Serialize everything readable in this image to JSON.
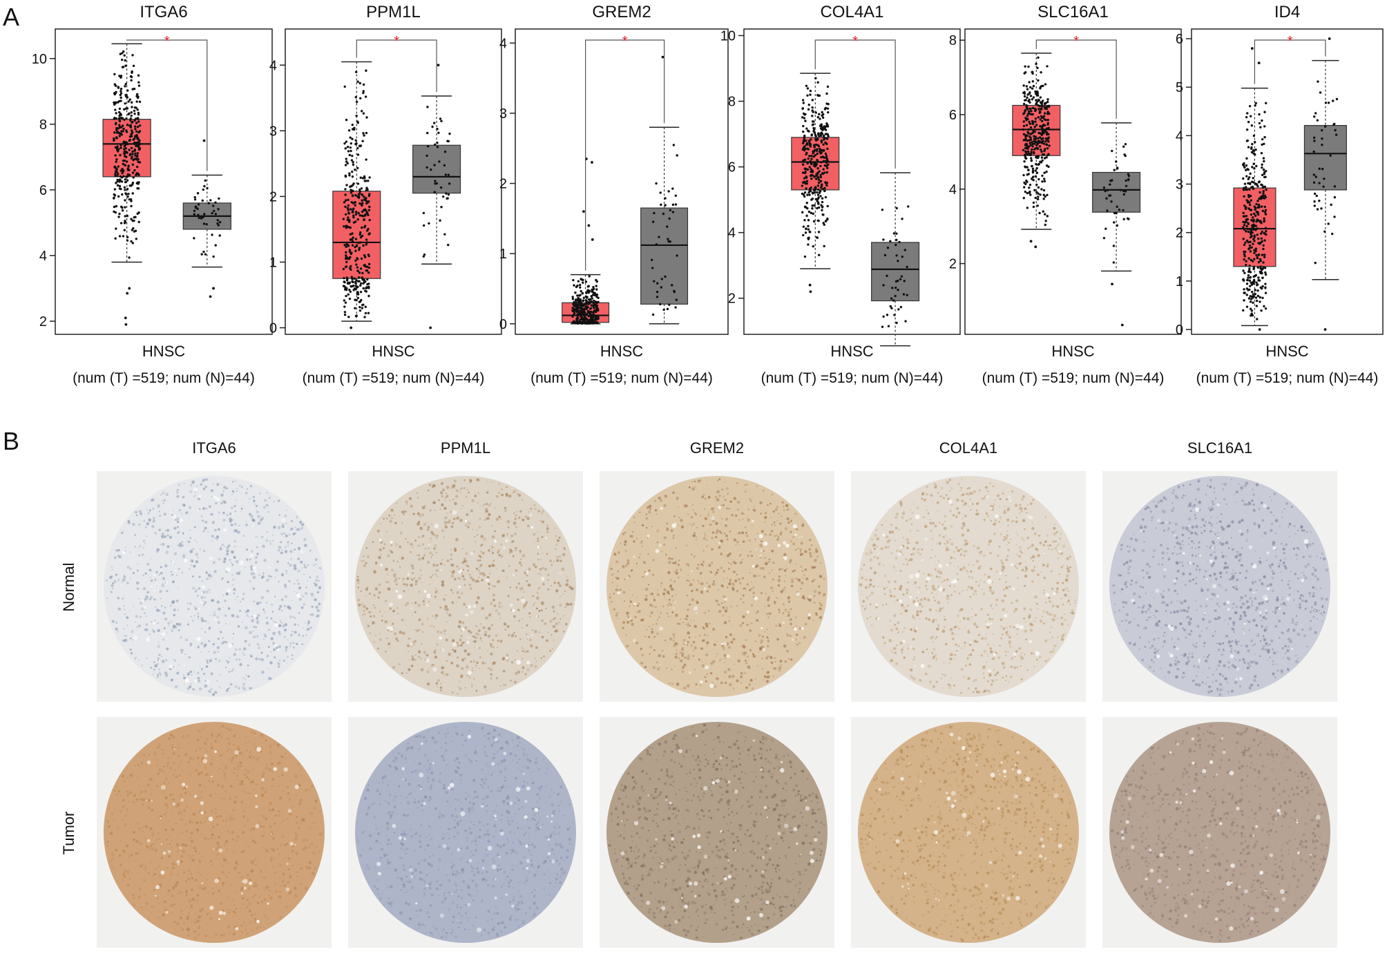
{
  "panel_a_label": "A",
  "panel_b_label": "B",
  "chart_data": [
    {
      "type": "box",
      "title": "ITGA6",
      "category": "HNSC",
      "n_label": "(num (T) =519; num (N)=44)",
      "sig": "*",
      "yticks": [
        2,
        4,
        6,
        8,
        10
      ],
      "ylim": [
        1.6,
        10.9
      ],
      "series": [
        {
          "name": "T",
          "color": "#f26064",
          "whisker_low": 3.8,
          "q1": 6.4,
          "median": 7.4,
          "q3": 8.15,
          "whisker_high": 10.45,
          "outliers": [
            3.0,
            2.85,
            2.1,
            1.9
          ]
        },
        {
          "name": "N",
          "color": "#7b7b7b",
          "whisker_low": 3.65,
          "q1": 4.8,
          "median": 5.2,
          "q3": 5.6,
          "whisker_high": 6.45,
          "outliers": [
            7.5,
            3.0,
            2.75
          ]
        }
      ]
    },
    {
      "type": "box",
      "title": "PPM1L",
      "category": "HNSC",
      "n_label": "(num (T) =519; num (N)=44)",
      "sig": "*",
      "yticks": [
        0,
        1,
        2,
        3,
        4
      ],
      "ylim": [
        -0.1,
        4.55
      ],
      "series": [
        {
          "name": "T",
          "color": "#f26064",
          "whisker_low": 0.1,
          "q1": 0.75,
          "median": 1.3,
          "q3": 2.08,
          "whisker_high": 4.05,
          "outliers": [
            0.0
          ]
        },
        {
          "name": "N",
          "color": "#7b7b7b",
          "whisker_low": 0.97,
          "q1": 2.05,
          "median": 2.3,
          "q3": 2.78,
          "whisker_high": 3.53,
          "outliers": [
            4.0,
            0.0
          ]
        }
      ]
    },
    {
      "type": "box",
      "title": "GREM2",
      "category": "HNSC",
      "n_label": "(num (T) =519; num (N)=44)",
      "sig": "*",
      "yticks": [
        0,
        1,
        2,
        3,
        4
      ],
      "ylim": [
        -0.15,
        4.2
      ],
      "series": [
        {
          "name": "T",
          "color": "#f26064",
          "whisker_low": 0.0,
          "q1": 0.02,
          "median": 0.12,
          "q3": 0.3,
          "whisker_high": 0.7,
          "outliers": [
            2.35,
            2.3,
            1.6,
            1.4,
            1.2
          ]
        },
        {
          "name": "N",
          "color": "#7b7b7b",
          "whisker_low": 0.0,
          "q1": 0.28,
          "median": 1.12,
          "q3": 1.65,
          "whisker_high": 2.8,
          "outliers": [
            3.8
          ]
        }
      ]
    },
    {
      "type": "box",
      "title": "COL4A1",
      "category": "HNSC",
      "n_label": "(num (T) =519; num (N)=44)",
      "sig": "*",
      "yticks": [
        2,
        4,
        6,
        8,
        10
      ],
      "ylim": [
        0.9,
        10.2
      ],
      "series": [
        {
          "name": "T",
          "color": "#f26064",
          "whisker_low": 2.9,
          "q1": 5.3,
          "median": 6.15,
          "q3": 6.9,
          "whisker_high": 8.85,
          "outliers": [
            2.4,
            2.2
          ]
        },
        {
          "name": "N",
          "color": "#7b7b7b",
          "whisker_low": 0.55,
          "q1": 1.92,
          "median": 2.88,
          "q3": 3.7,
          "whisker_high": 5.82,
          "outliers": []
        }
      ]
    },
    {
      "type": "box",
      "title": "SLC16A1",
      "category": "HNSC",
      "n_label": "(num (T) =519; num (N)=44)",
      "sig": "*",
      "yticks": [
        2,
        4,
        6,
        8
      ],
      "ylim": [
        0.1,
        8.3
      ],
      "series": [
        {
          "name": "T",
          "color": "#f26064",
          "whisker_low": 2.92,
          "q1": 4.9,
          "median": 5.6,
          "q3": 6.25,
          "whisker_high": 7.65,
          "outliers": [
            2.6,
            2.45
          ]
        },
        {
          "name": "N",
          "color": "#7b7b7b",
          "whisker_low": 1.8,
          "q1": 3.38,
          "median": 3.98,
          "q3": 4.45,
          "whisker_high": 5.78,
          "outliers": [
            1.45,
            0.35
          ]
        }
      ]
    },
    {
      "type": "box",
      "title": "ID4",
      "category": "HNSC",
      "n_label": "(num (T) =519; num (N)=44)",
      "sig": "*",
      "yticks": [
        0,
        1,
        2,
        3,
        4,
        5,
        6
      ],
      "ylim": [
        -0.1,
        6.2
      ],
      "series": [
        {
          "name": "T",
          "color": "#f26064",
          "whisker_low": 0.08,
          "q1": 1.3,
          "median": 2.08,
          "q3": 2.92,
          "whisker_high": 4.98,
          "outliers": [
            5.8,
            5.5,
            0.0
          ]
        },
        {
          "name": "N",
          "color": "#7b7b7b",
          "whisker_low": 1.03,
          "q1": 2.88,
          "median": 3.63,
          "q3": 4.21,
          "whisker_high": 5.55,
          "outliers": [
            6.0,
            0.0
          ]
        }
      ]
    }
  ],
  "ihc": {
    "columns": [
      "ITGA6",
      "PPM1L",
      "GREM2",
      "COL4A1",
      "SLC16A1"
    ],
    "rows": [
      "Normal",
      "Tumor"
    ],
    "cores": {
      "Normal": [
        {
          "tissue": "#e6e8eb",
          "stain": "#8a9ab3"
        },
        {
          "tissue": "#ddd4c6",
          "stain": "#a7825a"
        },
        {
          "tissue": "#dcc8a9",
          "stain": "#a1744a"
        },
        {
          "tissue": "#e3dbcf",
          "stain": "#b9956a"
        },
        {
          "tissue": "#c9cbd6",
          "stain": "#7d819c"
        }
      ],
      "Tumor": [
        {
          "tissue": "#cfa377",
          "stain": "#b98556"
        },
        {
          "tissue": "#aeb5c8",
          "stain": "#8a93ad"
        },
        {
          "tissue": "#b3a08a",
          "stain": "#7b6a5a"
        },
        {
          "tissue": "#d4b38a",
          "stain": "#b3874f"
        },
        {
          "tissue": "#b7a393",
          "stain": "#8d7a74"
        }
      ]
    }
  }
}
